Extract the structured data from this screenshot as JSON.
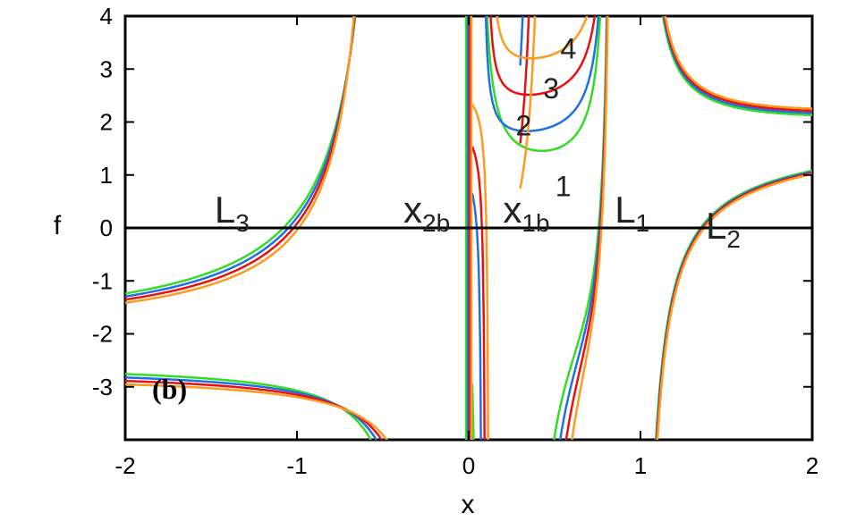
{
  "chart_data": {
    "type": "line",
    "xlabel": "x",
    "ylabel": "f",
    "xlim": [
      -2.0,
      2.0
    ],
    "ylim": [
      -4.0,
      4.0
    ],
    "xticks": [
      "-2",
      "-1",
      "0",
      "1",
      "2"
    ],
    "yticks": [
      "-3",
      "-2",
      "-1",
      "0",
      "1",
      "2",
      "3",
      "4"
    ],
    "panel_label": "(b)",
    "series_colors": [
      "#33dd22",
      "#1f6fe5",
      "#e81010",
      "#ff9a1f"
    ],
    "curve_labels": [
      {
        "text": "1",
        "x": 0.55,
        "y": 0.6
      },
      {
        "text": "2",
        "x": 0.32,
        "y": 1.75
      },
      {
        "text": "3",
        "x": 0.48,
        "y": 2.45
      },
      {
        "text": "4",
        "x": 0.58,
        "y": 3.2
      }
    ],
    "annotations": [
      {
        "main": "L",
        "sub": "3",
        "x": -1.48,
        "y": 0.1
      },
      {
        "main": "x",
        "sub": "2b",
        "x": -0.38,
        "y": 0.1
      },
      {
        "main": "x",
        "sub": "1b",
        "x": 0.2,
        "y": 0.1
      },
      {
        "main": "L",
        "sub": "1",
        "x": 0.85,
        "y": 0.1
      },
      {
        "main": "L",
        "sub": "2",
        "x": 1.38,
        "y": -0.2
      }
    ],
    "approx_curve_points": {
      "outer_left_upper": [
        [
          -2.0,
          -1.78
        ],
        [
          -1.5,
          -1.2
        ],
        [
          -1.1,
          0.0
        ],
        [
          -0.8,
          1.5
        ],
        [
          -0.6,
          3.0
        ],
        [
          -0.52,
          4.0
        ]
      ],
      "outer_left_lower": [
        [
          -2.0,
          -2.15
        ],
        [
          -1.5,
          -1.6
        ],
        [
          -1.0,
          -1.25
        ],
        [
          -0.7,
          -1.6
        ],
        [
          -0.5,
          -2.6
        ],
        [
          -0.3,
          -4.0
        ]
      ],
      "middle_curve_1": [
        [
          0.1,
          -4.0
        ],
        [
          0.2,
          -1.0
        ],
        [
          0.4,
          0.5
        ],
        [
          0.7,
          0.85
        ],
        [
          0.8,
          4.0
        ]
      ],
      "middle_curve_4": [
        [
          0.15,
          4.0
        ],
        [
          0.4,
          3.2
        ],
        [
          0.6,
          2.6
        ],
        [
          0.7,
          2.8
        ],
        [
          0.82,
          4.0
        ]
      ],
      "right_upper": [
        [
          1.08,
          4.0
        ],
        [
          1.2,
          2.0
        ],
        [
          1.5,
          1.7
        ],
        [
          2.0,
          2.1
        ]
      ],
      "right_lower": [
        [
          1.05,
          -3.5
        ],
        [
          1.2,
          -0.6
        ],
        [
          1.5,
          0.9
        ],
        [
          2.0,
          1.7
        ]
      ]
    }
  }
}
